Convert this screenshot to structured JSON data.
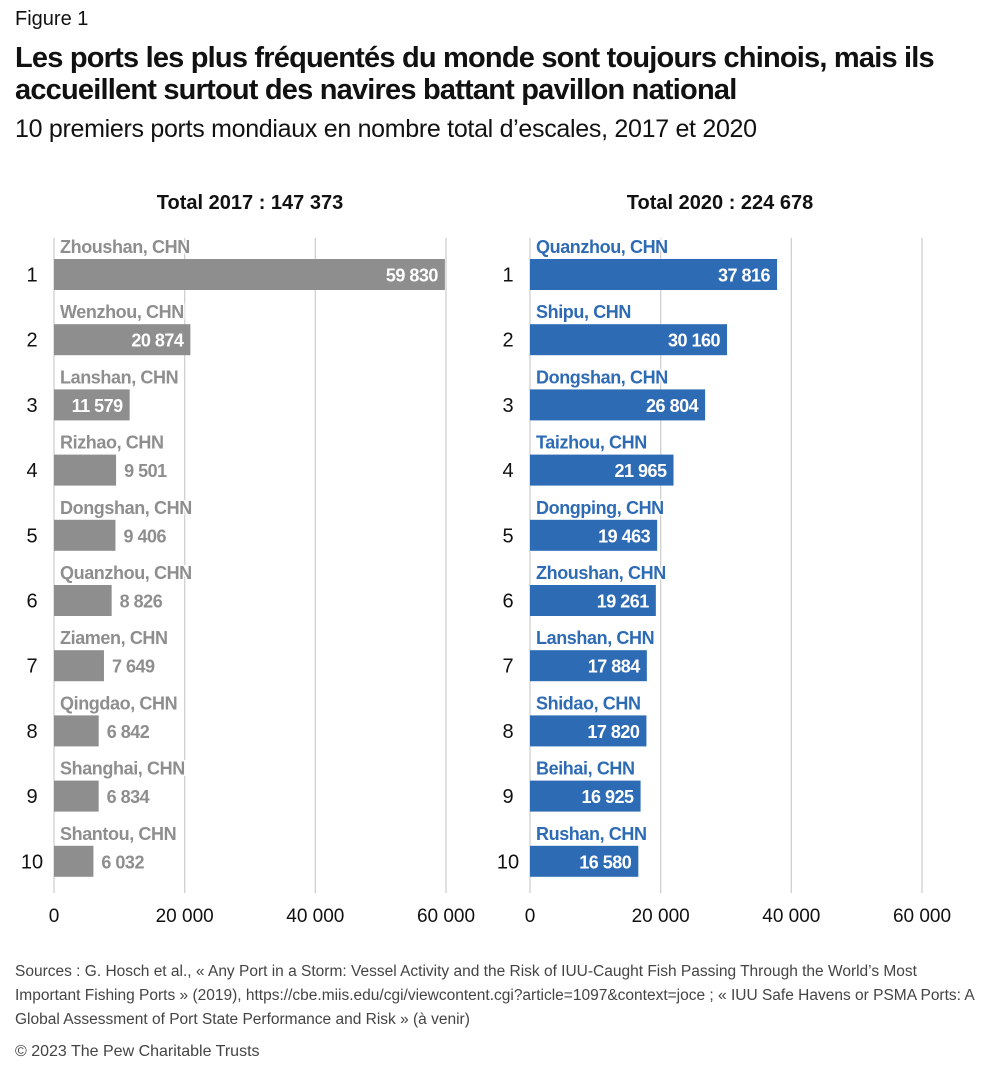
{
  "header": {
    "figure_label": "Figure 1",
    "title": "Les ports les plus fréquentés du monde sont toujours chinois, mais ils accueillent surtout des navires battant pavillon national",
    "subtitle": "10 premiers ports mondiaux en nombre total d’escales, 2017 et 2020"
  },
  "chart_data": [
    {
      "type": "bar",
      "orientation": "horizontal",
      "title": "Total 2017 : 147 373",
      "color": "#8f8e8e",
      "label_color": "#8f8e8e",
      "xlim": [
        0,
        60000
      ],
      "xticks": [
        0,
        20000,
        40000,
        60000
      ],
      "xtick_labels": [
        "0",
        "20 000",
        "40 000",
        "60 000"
      ],
      "grid": true,
      "ranks": [
        "1",
        "2",
        "3",
        "4",
        "5",
        "6",
        "7",
        "8",
        "9",
        "10"
      ],
      "categories": [
        "Zhoushan, CHN",
        "Wenzhou, CHN",
        "Lanshan, CHN",
        "Rizhao, CHN",
        "Dongshan, CHN",
        "Quanzhou, CHN",
        "Ziamen, CHN",
        "Qingdao, CHN",
        "Shanghai, CHN",
        "Shantou, CHN"
      ],
      "values": [
        59830,
        20874,
        11579,
        9501,
        9406,
        8826,
        7649,
        6842,
        6834,
        6032
      ],
      "value_labels": [
        "59 830",
        "20 874",
        "11 579",
        "9 501",
        "9 406",
        "8 826",
        "7 649",
        "6 842",
        "6 834",
        "6 032"
      ]
    },
    {
      "type": "bar",
      "orientation": "horizontal",
      "title": "Total 2020 : 224 678",
      "color": "#2e6bb5",
      "label_color": "#2e6bb5",
      "xlim": [
        0,
        60000
      ],
      "xticks": [
        0,
        20000,
        40000,
        60000
      ],
      "xtick_labels": [
        "0",
        "20 000",
        "40 000",
        "60 000"
      ],
      "grid": true,
      "ranks": [
        "1",
        "2",
        "3",
        "4",
        "5",
        "6",
        "7",
        "8",
        "9",
        "10"
      ],
      "categories": [
        "Quanzhou, CHN",
        "Shipu, CHN",
        "Dongshan, CHN",
        "Taizhou, CHN",
        "Dongping, CHN",
        "Zhoushan, CHN",
        "Lanshan, CHN",
        "Shidao, CHN",
        "Beihai, CHN",
        "Rushan, CHN"
      ],
      "values": [
        37816,
        30160,
        26804,
        21965,
        19463,
        19261,
        17884,
        17820,
        16925,
        16580
      ],
      "value_labels": [
        "37 816",
        "30 160",
        "26 804",
        "21 965",
        "19 463",
        "19 261",
        "17 884",
        "17 820",
        "16 925",
        "16 580"
      ]
    }
  ],
  "footer": {
    "sources": "Sources : G. Hosch et al., « Any Port in a Storm: Vessel Activity and the Risk of IUU-Caught Fish Passing Through the World’s Most Important Fishing Ports » (2019), https://cbe.miis.edu/cgi/viewcontent.cgi?article=1097&context=joce ; « IUU Safe Havens or PSMA Ports: A Global Assessment of Port State Performance and Risk » (à venir)",
    "copyright": "© 2023 The Pew Charitable Trusts"
  }
}
